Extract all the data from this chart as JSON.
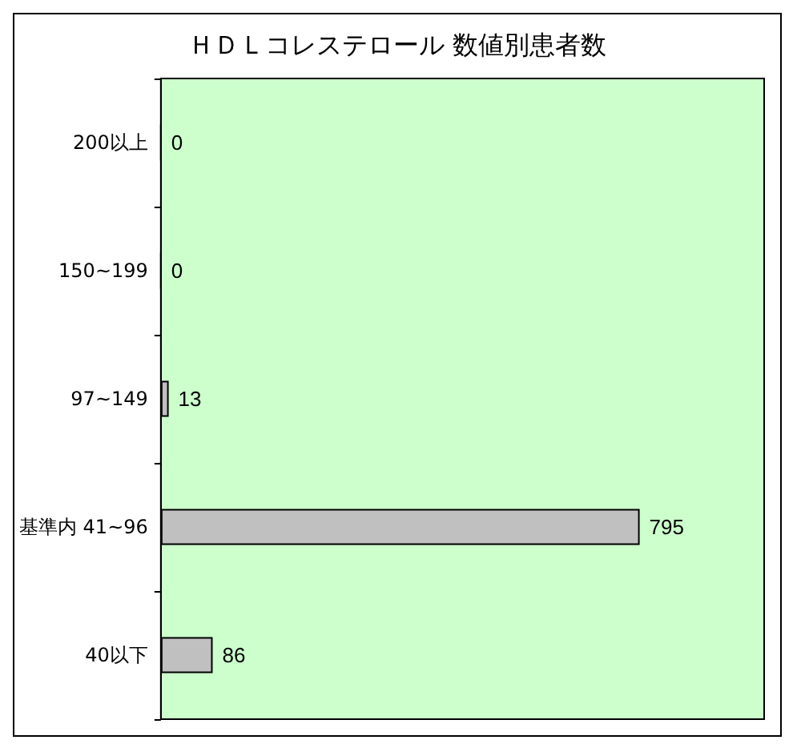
{
  "chart_data": {
    "type": "bar",
    "orientation": "horizontal",
    "title": "ＨＤＬコレステロール 数値別患者数",
    "categories": [
      "200以上",
      "150~199",
      "97~149",
      "基準内 41~96",
      "40以下"
    ],
    "values": [
      0,
      0,
      13,
      795,
      86
    ],
    "color": "#c0c0c0",
    "data_labels": true,
    "grid": false
  }
}
